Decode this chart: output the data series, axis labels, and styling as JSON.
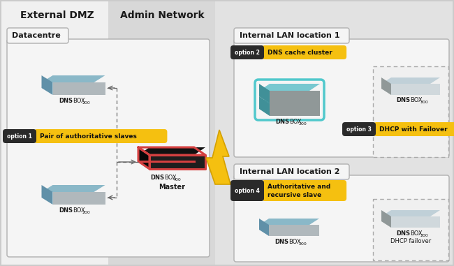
{
  "bg_color": "#cbcbcb",
  "left_bg": "#f0f0f0",
  "admin_bg": "#d8d8d8",
  "right_bg": "#e8e8e8",
  "box_fill": "#f5f5f5",
  "box_edge": "#aaaaaa",
  "yellow": "#f5c010",
  "dark_badge": "#2a2a2a",
  "red_outline": "#d44040",
  "cyan_border": "#50c8cc",
  "dashed_box_ec": "#aaaaaa",
  "title_ext": "External DMZ",
  "title_admin": "Admin Network",
  "title_dc": "Datacentre",
  "title_lan1": "Internal LAN location 1",
  "title_lan2": "Internal LAN location 2",
  "opt1_label": "option 1",
  "opt1_text": "Pair of authoritative slaves",
  "opt2_label": "option 2",
  "opt2_text": "DNS cache cluster",
  "opt3_label": "option 3",
  "opt3_text": "DHCP with Failover",
  "opt4_label": "option 4",
  "opt4_line1": "Authoritative and",
  "opt4_line2": "recursive slave",
  "master_label": "Master",
  "dhcp_failover_label": "DHCP failover",
  "box_blue_top": "#8ab8c8",
  "box_blue_side": "#6090a8",
  "box_gray_front": "#b0b8bc",
  "box_faded_top": "#c0d0d8",
  "box_faded_side": "#909898",
  "box_faded_front": "#d0d8dc"
}
